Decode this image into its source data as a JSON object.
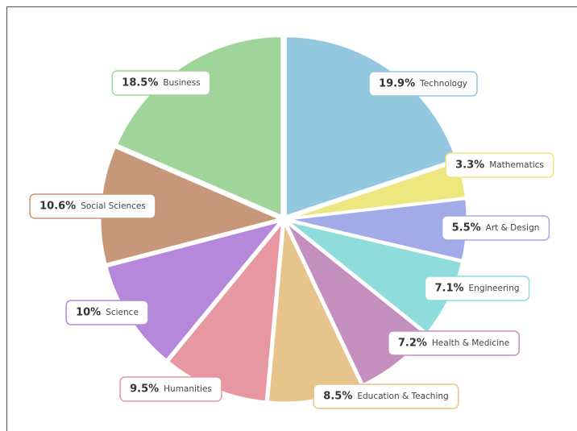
{
  "chart_data": {
    "type": "pie",
    "categories": [
      "Technology",
      "Mathematics",
      "Art & Design",
      "Engineering",
      "Health & Medicine",
      "Education & Teaching",
      "Humanities",
      "Science",
      "Social Sciences",
      "Business"
    ],
    "values": [
      19.9,
      3.3,
      5.5,
      7.1,
      7.2,
      8.5,
      9.5,
      10,
      10.6,
      18.5
    ],
    "value_labels": [
      "19.9%",
      "3.3%",
      "5.5%",
      "7.1%",
      "7.2%",
      "8.5%",
      "9.5%",
      "10%",
      "10.6%",
      "18.5%"
    ],
    "colors": [
      "#93c8e0",
      "#ece77f",
      "#a2abe8",
      "#8edcdc",
      "#c48fbe",
      "#e6c48b",
      "#e797a1",
      "#b588db",
      "#c7977a",
      "#9fd59b"
    ]
  }
}
